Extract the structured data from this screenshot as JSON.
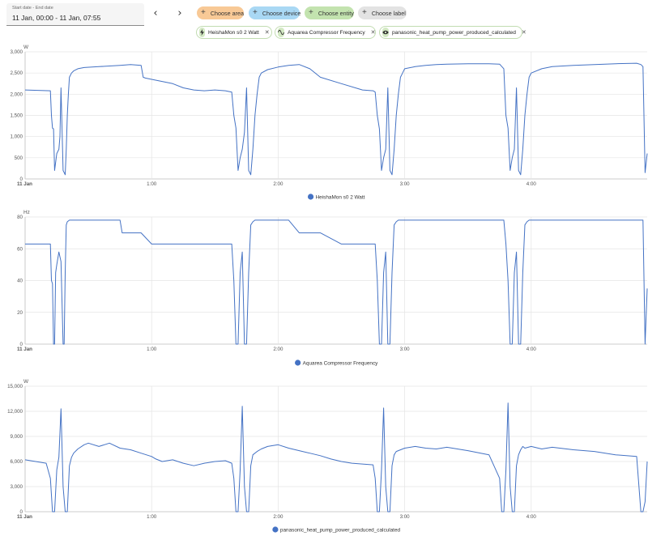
{
  "date_range": {
    "label": "Start date - End date",
    "value": "11 Jan, 00:00 - 11 Jan, 07:55"
  },
  "nav": {
    "prev_icon": "chevron-left-icon",
    "next_icon": "chevron-right-icon",
    "prev_glyph": "‹",
    "next_glyph": "›"
  },
  "target_chips": [
    {
      "label": "Choose area",
      "color": "#f8c996"
    },
    {
      "label": "Choose device",
      "color": "#a9d8f4"
    },
    {
      "label": "Choose entity",
      "color": "#c3e3af"
    },
    {
      "label": "Choose label",
      "color": "#e3e3e3"
    }
  ],
  "entity_chips": [
    {
      "label": "HeishaMon s0 2 Watt",
      "icon": "flash-icon"
    },
    {
      "label": "Aquarea Compressor Frequency",
      "icon": "sine-wave-icon"
    },
    {
      "label": "panasonic_heat_pump_power_produced_calculated",
      "icon": "eye-icon"
    }
  ],
  "line_color": "#4472c4",
  "chart_data": [
    {
      "type": "line",
      "unit": "W",
      "ylim": [
        0,
        3000
      ],
      "y_ticks": [
        0,
        500,
        1000,
        1500,
        2000,
        2500,
        3000
      ],
      "y_tick_labels": [
        "0",
        "500",
        "1,000",
        "1,500",
        "2,000",
        "2,500",
        "3,000"
      ],
      "x_ticks": [
        0,
        60,
        120,
        180,
        240
      ],
      "x_tick_labels": [
        "11 Jan",
        "1:00",
        "2:00",
        "3:00",
        "4:00"
      ],
      "xlim": [
        0,
        295
      ],
      "grid": true,
      "legend": "bottom-center",
      "series": [
        {
          "name": "HeishaMon s0 2 Watt",
          "x": [
            0,
            12,
            12.5,
            13,
            13.5,
            14,
            15,
            16,
            16.5,
            17,
            18,
            19,
            19.5,
            20,
            20.5,
            21,
            22,
            23,
            25,
            28,
            35,
            45,
            50,
            55,
            56,
            57,
            60,
            65,
            70,
            75,
            80,
            85,
            90,
            95,
            98,
            99,
            100,
            101,
            102,
            103,
            104,
            105,
            106,
            107,
            108,
            109,
            110,
            111,
            112,
            115,
            120,
            125,
            130,
            135,
            140,
            150,
            160,
            165,
            166,
            167,
            168,
            169,
            170,
            171,
            172,
            173,
            174,
            175,
            176,
            177,
            178,
            179,
            180,
            185,
            190,
            195,
            200,
            210,
            220,
            225,
            227,
            228,
            229,
            230,
            231,
            232,
            233,
            234,
            235,
            236,
            237,
            238,
            239,
            240,
            245,
            250,
            260,
            270,
            280,
            290,
            292,
            293,
            294,
            295
          ],
          "values": [
            2100,
            2080,
            1500,
            1200,
            1180,
            200,
            600,
            700,
            1000,
            2150,
            200,
            100,
            700,
            1500,
            2000,
            2400,
            2500,
            2550,
            2600,
            2630,
            2650,
            2680,
            2700,
            2680,
            2400,
            2380,
            2350,
            2300,
            2250,
            2150,
            2100,
            2080,
            2100,
            2080,
            2050,
            1500,
            1200,
            200,
            500,
            700,
            1100,
            2150,
            200,
            100,
            700,
            1500,
            2000,
            2400,
            2500,
            2580,
            2640,
            2680,
            2700,
            2600,
            2400,
            2250,
            2100,
            2080,
            2050,
            1500,
            1180,
            200,
            500,
            700,
            2150,
            200,
            100,
            700,
            1500,
            2000,
            2400,
            2500,
            2600,
            2650,
            2680,
            2700,
            2710,
            2720,
            2720,
            2710,
            2600,
            1500,
            1200,
            200,
            500,
            700,
            2150,
            200,
            100,
            700,
            1500,
            2000,
            2400,
            2500,
            2600,
            2650,
            2680,
            2700,
            2720,
            2730,
            2700,
            2650,
            150,
            600
          ]
        }
      ]
    },
    {
      "type": "line",
      "unit": "Hz",
      "ylim": [
        0,
        80
      ],
      "y_ticks": [
        0,
        20,
        40,
        60,
        80
      ],
      "y_tick_labels": [
        "0",
        "20",
        "40",
        "60",
        "80"
      ],
      "x_ticks": [
        0,
        60,
        120,
        180,
        240
      ],
      "x_tick_labels": [
        "11 Jan",
        "1:00",
        "2:00",
        "3:00",
        "4:00"
      ],
      "xlim": [
        0,
        295
      ],
      "grid": true,
      "legend": "bottom-center",
      "series": [
        {
          "name": "Aquarea Compressor Frequency",
          "x": [
            0,
            12,
            12.5,
            13,
            13.5,
            14,
            14.5,
            15,
            16,
            17,
            18,
            18.5,
            19,
            19.5,
            20,
            21,
            22,
            30,
            40,
            45,
            46,
            50,
            55,
            60,
            70,
            80,
            90,
            95,
            98,
            99,
            100,
            101,
            102,
            103,
            104,
            105,
            106,
            107,
            108,
            109,
            110,
            115,
            120,
            125,
            130,
            135,
            140,
            150,
            160,
            165,
            166,
            167,
            168,
            169,
            170,
            171,
            172,
            173,
            174,
            175,
            176,
            177,
            178,
            180,
            190,
            200,
            210,
            220,
            225,
            227,
            228,
            229,
            230,
            231,
            232,
            233,
            234,
            235,
            236,
            237,
            238,
            239,
            240,
            250,
            260,
            270,
            280,
            290,
            292,
            293,
            294,
            295
          ],
          "values": [
            63,
            63,
            40,
            38,
            0,
            0,
            45,
            50,
            58,
            52,
            0,
            0,
            45,
            75,
            77,
            78,
            78,
            78,
            78,
            78,
            70,
            70,
            70,
            63,
            63,
            63,
            63,
            63,
            63,
            40,
            0,
            0,
            45,
            58,
            0,
            0,
            45,
            75,
            77,
            78,
            78,
            78,
            78,
            78,
            70,
            70,
            70,
            63,
            63,
            63,
            63,
            40,
            0,
            0,
            45,
            58,
            0,
            0,
            45,
            75,
            77,
            78,
            78,
            78,
            78,
            78,
            78,
            78,
            78,
            78,
            63,
            40,
            0,
            0,
            45,
            58,
            0,
            0,
            45,
            75,
            77,
            78,
            78,
            78,
            78,
            78,
            78,
            78,
            78,
            78,
            0,
            35
          ]
        }
      ]
    },
    {
      "type": "line",
      "unit": "W",
      "ylim": [
        0,
        15000
      ],
      "y_ticks": [
        0,
        3000,
        6000,
        9000,
        12000,
        15000
      ],
      "y_tick_labels": [
        "0",
        "3,000",
        "6,000",
        "9,000",
        "12,000",
        "15,000"
      ],
      "x_ticks": [
        0,
        60,
        120,
        180,
        240
      ],
      "x_tick_labels": [
        "11 Jan",
        "1:00",
        "2:00",
        "3:00",
        "4:00"
      ],
      "xlim": [
        0,
        295
      ],
      "grid": true,
      "legend": "bottom-center",
      "series": [
        {
          "name": "panasonic_heat_pump_power_produced_calculated",
          "x": [
            0,
            5,
            10,
            12,
            13,
            14,
            15,
            16,
            17,
            18,
            19,
            20,
            21,
            22,
            23,
            25,
            28,
            30,
            35,
            40,
            45,
            50,
            55,
            60,
            62,
            65,
            70,
            75,
            80,
            85,
            90,
            95,
            98,
            99,
            100,
            101,
            102,
            103,
            104,
            105,
            106,
            107,
            108,
            110,
            112,
            115,
            120,
            125,
            130,
            135,
            140,
            145,
            150,
            155,
            160,
            165,
            166,
            167,
            168,
            169,
            170,
            171,
            172,
            173,
            174,
            175,
            176,
            180,
            185,
            190,
            195,
            200,
            210,
            220,
            225,
            226,
            227,
            228,
            229,
            230,
            231,
            232,
            233,
            234,
            235,
            236,
            237,
            240,
            245,
            250,
            260,
            270,
            280,
            290,
            292,
            293,
            294,
            295
          ],
          "values": [
            6200,
            6000,
            5800,
            4000,
            0,
            0,
            5000,
            6500,
            12300,
            3000,
            0,
            0,
            5500,
            6500,
            7000,
            7500,
            8000,
            8200,
            7800,
            8200,
            7600,
            7400,
            7000,
            6600,
            6300,
            6000,
            6200,
            5800,
            5500,
            5800,
            6000,
            6100,
            5800,
            4000,
            0,
            0,
            5000,
            12600,
            3000,
            0,
            0,
            5500,
            6800,
            7200,
            7500,
            7800,
            8000,
            7600,
            7300,
            7000,
            6700,
            6300,
            6000,
            5800,
            5700,
            5600,
            4000,
            0,
            0,
            5000,
            12400,
            3000,
            0,
            0,
            5500,
            6800,
            7200,
            7600,
            7800,
            7600,
            7500,
            7700,
            7300,
            6800,
            4000,
            0,
            0,
            5000,
            13000,
            3000,
            0,
            0,
            5500,
            6800,
            7400,
            7800,
            7600,
            7800,
            7500,
            7700,
            7400,
            7200,
            6800,
            6600,
            0,
            0,
            1200,
            6000
          ]
        }
      ]
    }
  ]
}
